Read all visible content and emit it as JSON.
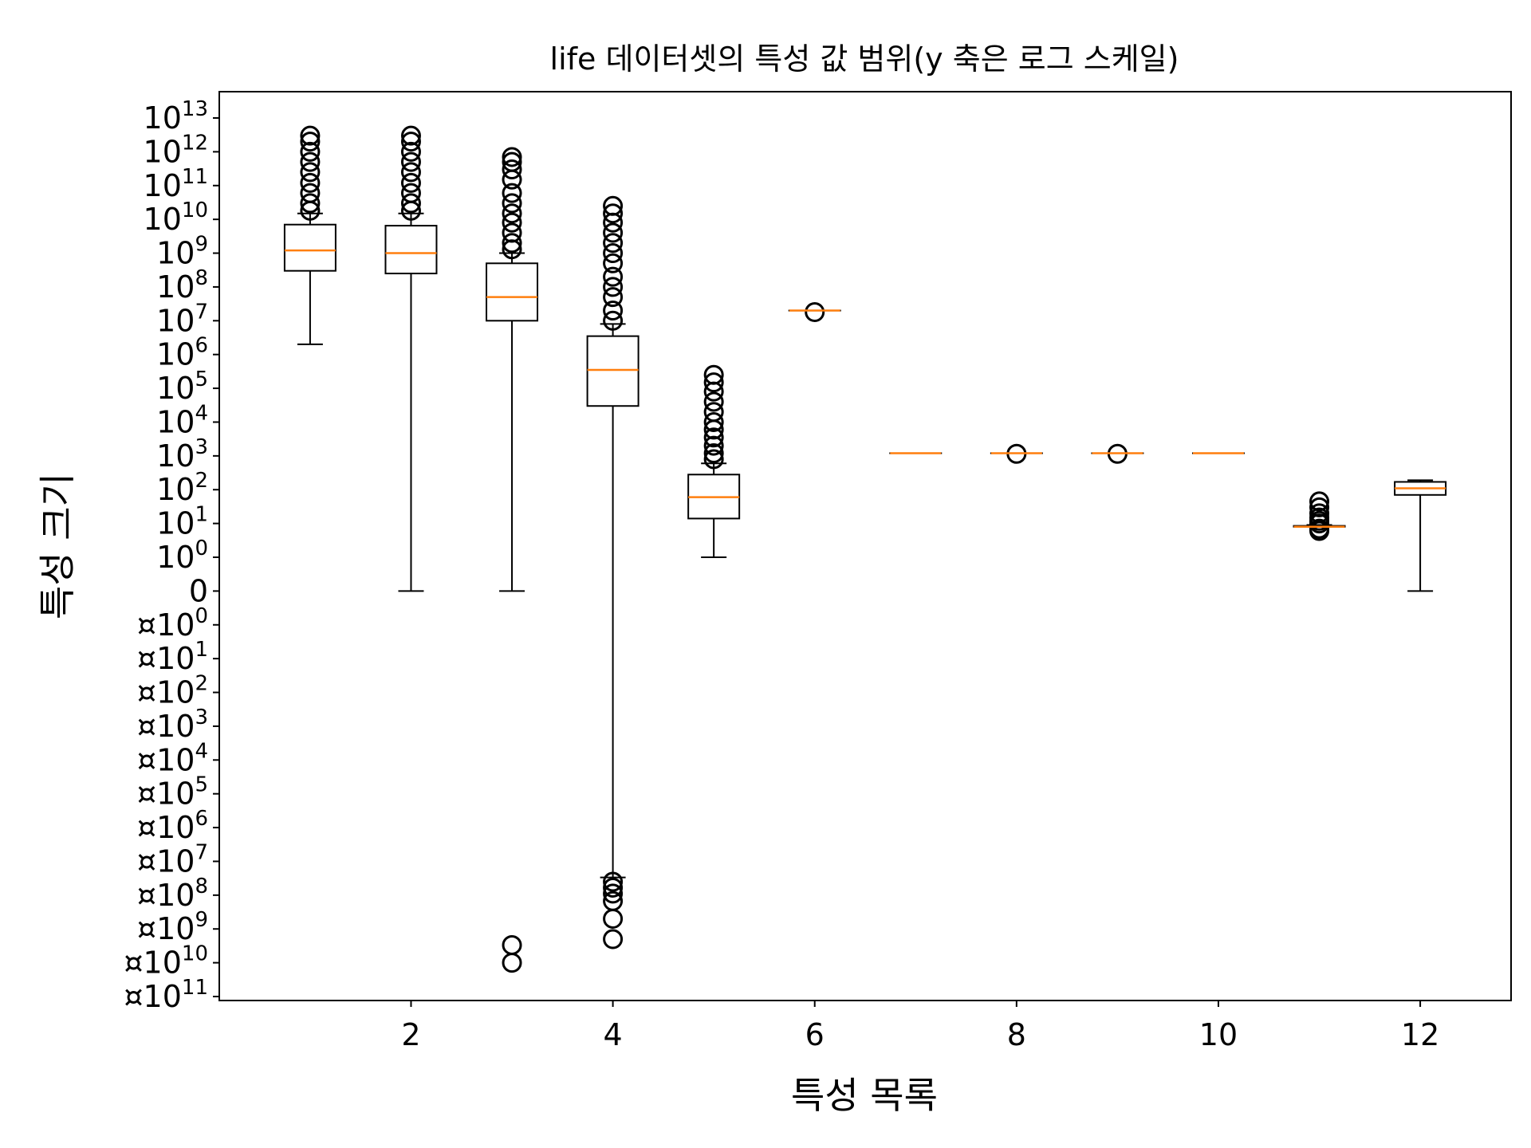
{
  "chart_data": {
    "type": "box",
    "title": "life 데이터셋의 특성 값 범위(y 축은 로그 스케일)",
    "xlabel": "특성 목록",
    "ylabel": "특성 크기",
    "yscale": "symlog",
    "xlim": [
      0.1,
      12.9
    ],
    "xticks": [
      2,
      4,
      6,
      8,
      10,
      12
    ],
    "yticks": [
      {
        "base": "10",
        "exp": "13"
      },
      {
        "base": "10",
        "exp": "12"
      },
      {
        "base": "10",
        "exp": "11"
      },
      {
        "base": "10",
        "exp": "10"
      },
      {
        "base": "10",
        "exp": "9"
      },
      {
        "base": "10",
        "exp": "8"
      },
      {
        "base": "10",
        "exp": "7"
      },
      {
        "base": "10",
        "exp": "6"
      },
      {
        "base": "10",
        "exp": "5"
      },
      {
        "base": "10",
        "exp": "4"
      },
      {
        "base": "10",
        "exp": "3"
      },
      {
        "base": "10",
        "exp": "2"
      },
      {
        "base": "10",
        "exp": "1"
      },
      {
        "base": "10",
        "exp": "0"
      },
      {
        "base": "0",
        "exp": ""
      },
      {
        "base": "¤10",
        "exp": "0"
      },
      {
        "base": "¤10",
        "exp": "1"
      },
      {
        "base": "¤10",
        "exp": "2"
      },
      {
        "base": "¤10",
        "exp": "3"
      },
      {
        "base": "¤10",
        "exp": "4"
      },
      {
        "base": "¤10",
        "exp": "5"
      },
      {
        "base": "¤10",
        "exp": "6"
      },
      {
        "base": "¤10",
        "exp": "7"
      },
      {
        "base": "¤10",
        "exp": "8"
      },
      {
        "base": "¤10",
        "exp": "9"
      },
      {
        "base": "¤10",
        "exp": "10"
      },
      {
        "base": "¤10",
        "exp": "11"
      }
    ],
    "ytick_values": [
      10000000000000.0,
      1000000000000.0,
      100000000000.0,
      10000000000.0,
      1000000000.0,
      100000000.0,
      10000000.0,
      1000000.0,
      100000.0,
      10000.0,
      1000.0,
      100.0,
      10.0,
      1,
      0,
      -1,
      -10.0,
      -100.0,
      -1000.0,
      -10000.0,
      -100000.0,
      -1000000.0,
      -10000000.0,
      -100000000.0,
      -1000000000.0,
      -10000000000.0,
      -100000000000.0
    ],
    "series": [
      {
        "x": 1,
        "whisker_low": 2000000.0,
        "q1": 300000000.0,
        "median": 1200000000.0,
        "q3": 7000000000.0,
        "whisker_high": 15000000000.0,
        "fliers": [
          18000000000.0,
          30000000000.0,
          60000000000.0,
          120000000000.0,
          250000000000.0,
          500000000000.0,
          1000000000000.0,
          2000000000000.0,
          3000000000000.0
        ]
      },
      {
        "x": 2,
        "whisker_low": 0,
        "q1": 250000000.0,
        "median": 1000000000.0,
        "q3": 6500000000.0,
        "whisker_high": 15000000000.0,
        "fliers": [
          18000000000.0,
          30000000000.0,
          60000000000.0,
          120000000000.0,
          250000000000.0,
          500000000000.0,
          1000000000000.0,
          2000000000000.0,
          3000000000000.0
        ]
      },
      {
        "x": 3,
        "whisker_low": 0,
        "q1": 10000000.0,
        "median": 50000000.0,
        "q3": 500000000.0,
        "whisker_high": 1000000000.0,
        "fliers": [
          1300000000.0,
          2000000000.0,
          4000000000.0,
          8000000000.0,
          15000000000.0,
          30000000000.0,
          60000000000.0,
          150000000000.0,
          300000000000.0,
          500000000000.0,
          700000000000.0,
          -3000000000.0,
          -10000000000.0
        ]
      },
      {
        "x": 4,
        "whisker_low": -30000000.0,
        "q1": 30000.0,
        "median": 350000.0,
        "q3": 3500000.0,
        "whisker_high": 8000000.0,
        "fliers": [
          10000000.0,
          20000000.0,
          50000000.0,
          100000000.0,
          200000000.0,
          500000000.0,
          1000000000.0,
          2000000000.0,
          4000000000.0,
          8000000000.0,
          15000000000.0,
          25000000000.0,
          -40000000.0,
          -60000000.0,
          -90000000.0,
          -150000000.0,
          -500000000.0,
          -2000000000.0
        ]
      },
      {
        "x": 5,
        "whisker_low": 1,
        "q1": 14,
        "median": 60,
        "q3": 280,
        "whisker_high": 600,
        "fliers": [
          800,
          1200,
          2000,
          3500,
          6000,
          10000.0,
          20000.0,
          40000.0,
          80000.0,
          150000.0,
          250000.0
        ]
      },
      {
        "x": 6,
        "whisker_low": 20000000.0,
        "q1": 20000000.0,
        "median": 20000000.0,
        "q3": 20000000.0,
        "whisker_high": 20000000.0,
        "fliers": [
          18000000.0
        ]
      },
      {
        "x": 7,
        "whisker_low": 1200,
        "q1": 1200,
        "median": 1200,
        "q3": 1200,
        "whisker_high": 1200,
        "fliers": []
      },
      {
        "x": 8,
        "whisker_low": 1200,
        "q1": 1200,
        "median": 1200,
        "q3": 1200,
        "whisker_high": 1200,
        "fliers": [
          1150
        ]
      },
      {
        "x": 9,
        "whisker_low": 1200,
        "q1": 1200,
        "median": 1200,
        "q3": 1200,
        "whisker_high": 1200,
        "fliers": [
          1150
        ]
      },
      {
        "x": 10,
        "whisker_low": 1200,
        "q1": 1200,
        "median": 1200,
        "q3": 1200,
        "whisker_high": 1200,
        "fliers": []
      },
      {
        "x": 11,
        "whisker_low": 8,
        "q1": 8,
        "median": 8,
        "q3": 8.5,
        "whisker_high": 9,
        "fliers": [
          6,
          7,
          10,
          12,
          15,
          20,
          30,
          45
        ]
      },
      {
        "x": 12,
        "whisker_low": 0,
        "q1": 70,
        "median": 110,
        "q3": 170,
        "whisker_high": 190,
        "fliers": []
      }
    ],
    "colors": {
      "box": "#000000",
      "median": "#ff7f0e",
      "flier": "#000000",
      "background": "#ffffff"
    }
  }
}
